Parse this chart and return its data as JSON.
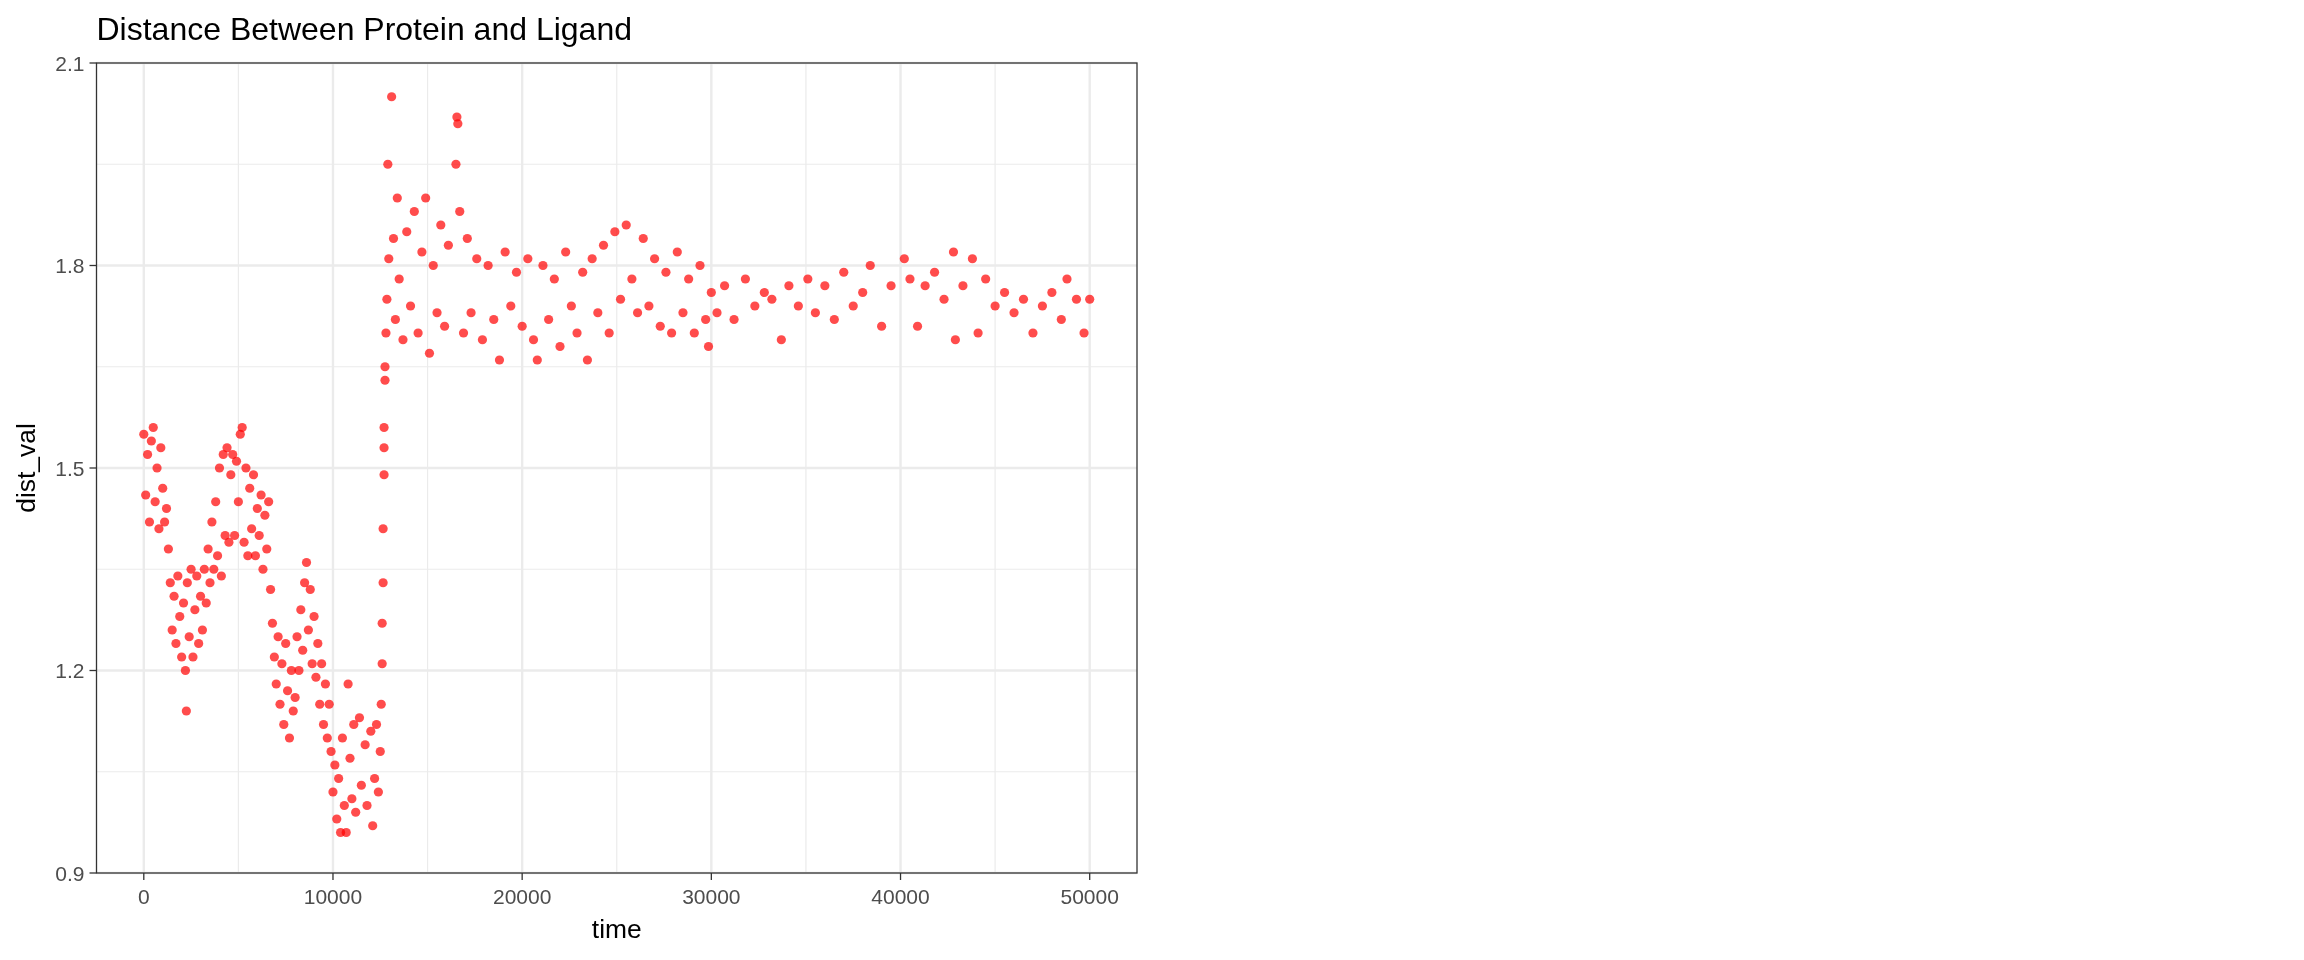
{
  "chart_data": {
    "type": "scatter",
    "title": "Distance Between Protein and Ligand",
    "xlabel": "time",
    "ylabel": "dist_val",
    "x": [
      0,
      100,
      200,
      300,
      400,
      500,
      600,
      700,
      800,
      900,
      1000,
      1100,
      1200,
      1300,
      1400,
      1500,
      1600,
      1700,
      1800,
      1900,
      2000,
      2100,
      2200,
      2250,
      2300,
      2400,
      2500,
      2600,
      2700,
      2800,
      2900,
      3000,
      3100,
      3200,
      3300,
      3400,
      3500,
      3600,
      3700,
      3800,
      3900,
      4000,
      4100,
      4200,
      4300,
      4400,
      4500,
      4600,
      4700,
      4800,
      4900,
      5000,
      5100,
      5200,
      5300,
      5400,
      5500,
      5600,
      5700,
      5800,
      5900,
      6000,
      6100,
      6200,
      6300,
      6400,
      6500,
      6600,
      6700,
      6800,
      6900,
      7000,
      7100,
      7200,
      7300,
      7400,
      7500,
      7600,
      7700,
      7800,
      7900,
      8000,
      8100,
      8200,
      8300,
      8400,
      8500,
      8600,
      8700,
      8800,
      8900,
      9000,
      9100,
      9200,
      9300,
      9400,
      9500,
      9600,
      9700,
      9800,
      9900,
      10000,
      10100,
      10200,
      10300,
      10400,
      10500,
      10600,
      10700,
      10800,
      10900,
      11000,
      11100,
      11200,
      11400,
      11500,
      11700,
      11800,
      12000,
      12100,
      12200,
      12300,
      12400,
      12500,
      12550,
      12600,
      12600,
      12650,
      12650,
      12700,
      12700,
      12700,
      12750,
      12750,
      12800,
      12850,
      12900,
      12950,
      13100,
      13200,
      13300,
      13400,
      13500,
      13700,
      13900,
      14100,
      14300,
      14500,
      14700,
      14900,
      15100,
      15300,
      15500,
      15700,
      15900,
      16100,
      16500,
      16550,
      16600,
      16700,
      16900,
      17100,
      17300,
      17600,
      17900,
      18200,
      18500,
      18800,
      19100,
      19400,
      19700,
      20000,
      20300,
      20600,
      20800,
      21100,
      21400,
      21700,
      22000,
      22300,
      22600,
      22900,
      23200,
      23450,
      23700,
      24000,
      24300,
      24600,
      24900,
      25200,
      25500,
      25800,
      26100,
      26400,
      26700,
      27000,
      27300,
      27600,
      27900,
      28200,
      28500,
      28800,
      29100,
      29400,
      29700,
      29850,
      30000,
      30300,
      30700,
      31200,
      31800,
      32300,
      32800,
      33200,
      33700,
      34100,
      34600,
      35100,
      35500,
      36000,
      36500,
      37000,
      37500,
      38000,
      38400,
      39000,
      39500,
      40200,
      40500,
      40900,
      41300,
      41800,
      42300,
      42800,
      42900,
      43300,
      43800,
      44100,
      44500,
      45000,
      45500,
      46000,
      46500,
      47000,
      47500,
      48000,
      48500,
      48800,
      49300,
      49700,
      50000
    ],
    "values": [
      1.55,
      1.46,
      1.52,
      1.42,
      1.54,
      1.56,
      1.45,
      1.5,
      1.41,
      1.53,
      1.47,
      1.42,
      1.44,
      1.38,
      1.33,
      1.26,
      1.31,
      1.24,
      1.34,
      1.28,
      1.22,
      1.3,
      1.2,
      1.14,
      1.33,
      1.25,
      1.35,
      1.22,
      1.29,
      1.34,
      1.24,
      1.31,
      1.26,
      1.35,
      1.3,
      1.38,
      1.33,
      1.42,
      1.35,
      1.45,
      1.37,
      1.5,
      1.34,
      1.52,
      1.4,
      1.53,
      1.39,
      1.49,
      1.52,
      1.4,
      1.51,
      1.45,
      1.55,
      1.56,
      1.39,
      1.5,
      1.37,
      1.47,
      1.41,
      1.49,
      1.37,
      1.44,
      1.4,
      1.46,
      1.35,
      1.43,
      1.38,
      1.45,
      1.32,
      1.27,
      1.22,
      1.18,
      1.25,
      1.15,
      1.21,
      1.12,
      1.24,
      1.17,
      1.1,
      1.2,
      1.14,
      1.16,
      1.25,
      1.2,
      1.29,
      1.23,
      1.33,
      1.36,
      1.26,
      1.32,
      1.21,
      1.28,
      1.19,
      1.24,
      1.15,
      1.21,
      1.12,
      1.18,
      1.1,
      1.15,
      1.08,
      1.02,
      1.06,
      0.98,
      1.04,
      0.96,
      1.1,
      1.0,
      0.96,
      1.18,
      1.07,
      1.01,
      1.12,
      0.99,
      1.13,
      1.03,
      1.09,
      1.0,
      1.11,
      0.97,
      1.04,
      1.12,
      1.02,
      1.08,
      1.15,
      1.21,
      1.27,
      1.33,
      1.41,
      1.49,
      1.53,
      1.56,
      1.63,
      1.65,
      1.7,
      1.75,
      1.95,
      1.81,
      2.05,
      1.84,
      1.72,
      1.9,
      1.78,
      1.69,
      1.85,
      1.74,
      1.88,
      1.7,
      1.82,
      1.9,
      1.67,
      1.8,
      1.73,
      1.86,
      1.71,
      1.83,
      1.95,
      2.02,
      2.01,
      1.88,
      1.7,
      1.84,
      1.73,
      1.81,
      1.69,
      1.8,
      1.72,
      1.66,
      1.82,
      1.74,
      1.79,
      1.71,
      1.81,
      1.69,
      1.66,
      1.8,
      1.72,
      1.78,
      1.68,
      1.82,
      1.74,
      1.7,
      1.79,
      1.66,
      1.81,
      1.73,
      1.83,
      1.7,
      1.85,
      1.75,
      1.86,
      1.78,
      1.73,
      1.84,
      1.74,
      1.81,
      1.71,
      1.79,
      1.7,
      1.82,
      1.73,
      1.78,
      1.7,
      1.8,
      1.72,
      1.68,
      1.76,
      1.73,
      1.77,
      1.72,
      1.78,
      1.74,
      1.76,
      1.75,
      1.69,
      1.77,
      1.74,
      1.78,
      1.73,
      1.77,
      1.72,
      1.79,
      1.74,
      1.76,
      1.8,
      1.71,
      1.77,
      1.81,
      1.78,
      1.71,
      1.77,
      1.79,
      1.75,
      1.82,
      1.69,
      1.77,
      1.81,
      1.7,
      1.78,
      1.74,
      1.76,
      1.73,
      1.75,
      1.7,
      1.74,
      1.76,
      1.72,
      1.78,
      1.75,
      1.7,
      1.75
    ],
    "color": "#ff0000",
    "marker": "circle",
    "grid": true,
    "xlim": [
      -2500,
      52500
    ],
    "ylim": [
      0.9,
      2.1
    ],
    "xticks": [
      0,
      10000,
      20000,
      30000,
      40000,
      50000
    ],
    "yticks": [
      0.9,
      1.2,
      1.5,
      1.8,
      2.1
    ]
  }
}
